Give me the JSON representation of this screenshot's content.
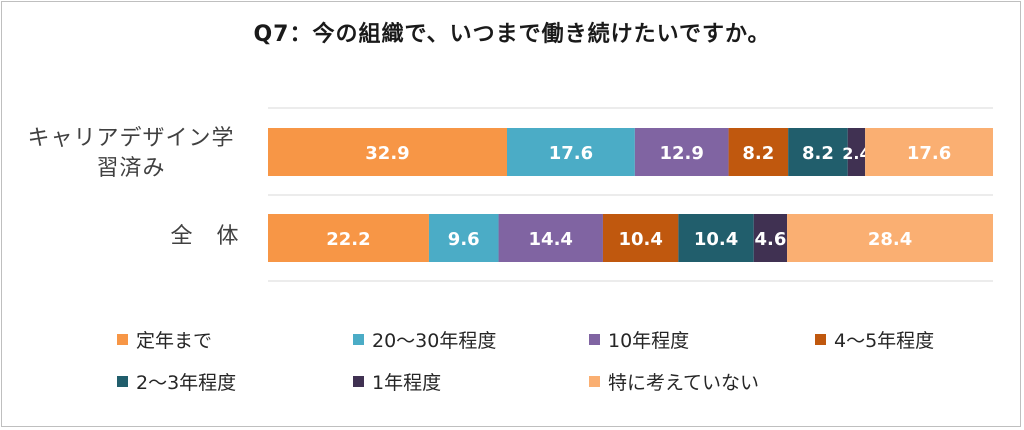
{
  "chart_data": {
    "type": "bar",
    "orientation": "horizontal",
    "stacked": true,
    "title": "Q7：今の組織で、いつまで働き続けたいですか。",
    "categories": [
      "キャリアデザイン学習済み",
      "全　体"
    ],
    "series": [
      {
        "name": "定年まで",
        "color": "#F79646",
        "values": [
          32.9,
          22.2
        ]
      },
      {
        "name": "20～30年程度",
        "color": "#4BACC6",
        "values": [
          17.6,
          9.6
        ]
      },
      {
        "name": "10年程度",
        "color": "#8064A2",
        "values": [
          12.9,
          14.4
        ]
      },
      {
        "name": "4～5年程度",
        "color": "#C0580E",
        "values": [
          8.2,
          10.4
        ]
      },
      {
        "name": "2～3年程度",
        "color": "#215E6C",
        "values": [
          8.2,
          10.4
        ]
      },
      {
        "name": "1年程度",
        "color": "#403152",
        "values": [
          2.4,
          4.6
        ]
      },
      {
        "name": "特に考えていない",
        "color": "#FAAF72",
        "values": [
          17.6,
          28.4
        ]
      }
    ],
    "xlim": [
      0,
      100
    ],
    "grid": true,
    "legend_position": "bottom"
  }
}
